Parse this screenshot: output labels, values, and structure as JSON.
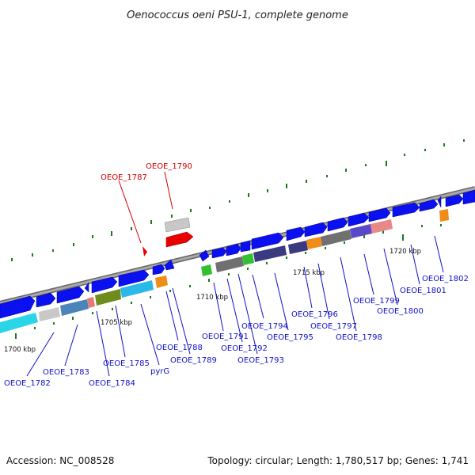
{
  "title": "Oenococcus oeni PSU-1, complete genome",
  "footer": {
    "accession": "Accession: NC_008528",
    "summary": "Topology: circular; Length: 1,780,517 bp; Genes: 1,741"
  },
  "colors": {
    "backbone": "#8c8c8c",
    "gene_default": "#0b10f0",
    "label_default": "#1010c8",
    "label_highlight": "#d40000",
    "gc_tick": "#1a7a1a"
  },
  "scale_labels": [
    "1700 kbp",
    "1705 kbp",
    "1710 kbp",
    "1715 kbp",
    "1720 kbp"
  ],
  "gene_labels": [
    {
      "text": "OEOE_1782",
      "highlight": false
    },
    {
      "text": "OEOE_1783",
      "highlight": false
    },
    {
      "text": "OEOE_1784",
      "highlight": false
    },
    {
      "text": "OEOE_1785",
      "highlight": false
    },
    {
      "text": "pyrG",
      "highlight": false
    },
    {
      "text": "OEOE_1787",
      "highlight": true
    },
    {
      "text": "OEOE_1788",
      "highlight": false
    },
    {
      "text": "OEOE_1789",
      "highlight": false
    },
    {
      "text": "OEOE_1790",
      "highlight": true
    },
    {
      "text": "OEOE_1791",
      "highlight": false
    },
    {
      "text": "OEOE_1792",
      "highlight": false
    },
    {
      "text": "OEOE_1793",
      "highlight": false
    },
    {
      "text": "OEOE_1794",
      "highlight": false
    },
    {
      "text": "OEOE_1795",
      "highlight": false
    },
    {
      "text": "OEOE_1796",
      "highlight": false
    },
    {
      "text": "OEOE_1797",
      "highlight": false
    },
    {
      "text": "OEOE_1798",
      "highlight": false
    },
    {
      "text": "OEOE_1799",
      "highlight": false
    },
    {
      "text": "OEOE_1800",
      "highlight": false
    },
    {
      "text": "OEOE_1801",
      "highlight": false
    },
    {
      "text": "OEOE_1802",
      "highlight": false
    }
  ]
}
